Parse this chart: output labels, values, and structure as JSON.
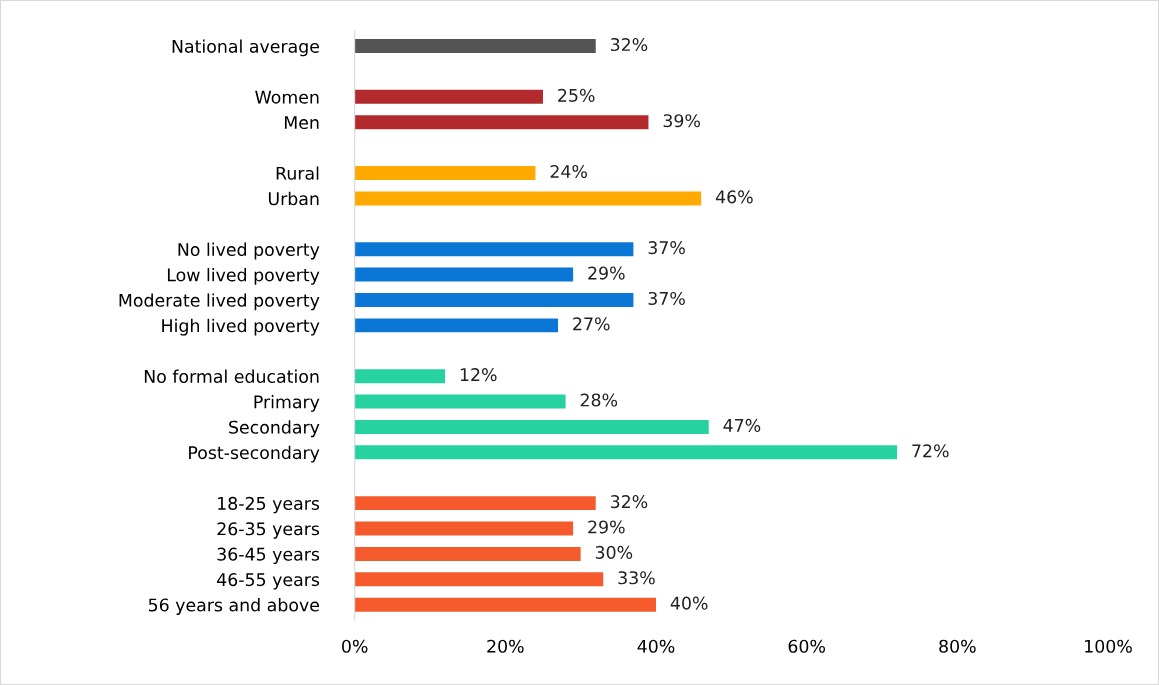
{
  "chart_data": {
    "type": "bar",
    "orientation": "horizontal",
    "categories": [
      "National average",
      null,
      "Women",
      "Men",
      null,
      "Rural",
      "Urban",
      null,
      "No lived poverty",
      "Low lived poverty",
      "Moderate lived poverty",
      "High lived poverty",
      null,
      "No formal education",
      "Primary",
      "Secondary",
      "Post-secondary",
      null,
      "18-25 years",
      "26-35 years",
      "36-45 years",
      "46-55 years",
      "56 years and above"
    ],
    "values": [
      32,
      null,
      25,
      39,
      null,
      24,
      46,
      null,
      37,
      29,
      37,
      27,
      null,
      12,
      28,
      47,
      72,
      null,
      32,
      29,
      30,
      33,
      40
    ],
    "value_labels": [
      "32%",
      null,
      "25%",
      "39%",
      null,
      "24%",
      "46%",
      null,
      "37%",
      "29%",
      "37%",
      "27%",
      null,
      "12%",
      "28%",
      "47%",
      "72%",
      null,
      "32%",
      "29%",
      "30%",
      "33%",
      "40%"
    ],
    "colors": [
      "#555555",
      null,
      "#b22a2e",
      "#b22a2e",
      null,
      "#ffaa00",
      "#ffaa00",
      null,
      "#0a77d6",
      "#0a77d6",
      "#0a77d6",
      "#0a77d6",
      null,
      "#26d2a0",
      "#26d2a0",
      "#26d2a0",
      "#26d2a0",
      null,
      "#f55a2c",
      "#f55a2c",
      "#f55a2c",
      "#f55a2c",
      "#f55a2c"
    ],
    "xlim": [
      0,
      100
    ],
    "xticks": [
      {
        "value": 0,
        "label": "0%"
      },
      {
        "value": 20,
        "label": "20%"
      },
      {
        "value": 40,
        "label": "40%"
      },
      {
        "value": 60,
        "label": "60%"
      },
      {
        "value": 80,
        "label": "80%"
      },
      {
        "value": 100,
        "label": "100%"
      }
    ],
    "grid": false,
    "legend": false
  }
}
